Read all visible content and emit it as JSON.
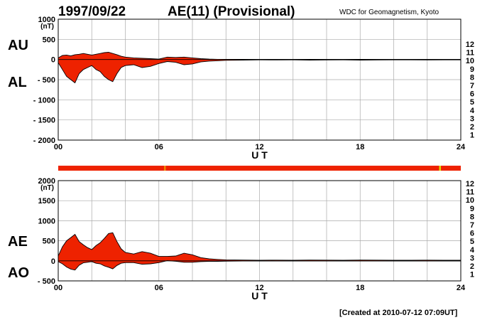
{
  "header": {
    "date": "1997/09/22",
    "title": "AE(11) (Provisional)",
    "source": "WDC for Geomagnetism, Kyoto"
  },
  "footer": {
    "created": "[Created at 2010-07-12 07:09UT]"
  },
  "stations": {
    "labels": [
      "12",
      "11",
      "10",
      "9",
      "8",
      "7",
      "6",
      "5",
      "4",
      "3",
      "2",
      "1"
    ],
    "colors": [
      "#e0207a",
      "#d40000",
      "#f0a000",
      "#e8e000",
      "#90e000",
      "#20c0c0",
      "#0070f0",
      "#2020c0",
      "#c000c0",
      "#000000",
      "#606060",
      "#b0b0b0"
    ]
  },
  "coverage_bar": {
    "color": "#ee2200",
    "markers": [
      {
        "hour": 6.35,
        "color": "#ee8800"
      },
      {
        "hour": 22.75,
        "color": "#dddd00"
      }
    ]
  },
  "chart_data": [
    {
      "type": "area",
      "name": "upper-panel",
      "left_labels": [
        "AU",
        "AL"
      ],
      "unit_label": "(nT)",
      "xlabel": "U T",
      "xlim": [
        0,
        24
      ],
      "xticks": [
        "00",
        "06",
        "12",
        "18",
        "24"
      ],
      "ylim": [
        -2000,
        1000
      ],
      "yticks": [
        1000,
        500,
        0,
        -500,
        -1000,
        -1500,
        -2000
      ],
      "ytick_labels": [
        "1000",
        "500",
        "0",
        "- 500",
        "- 1000",
        "- 1500",
        "- 2000"
      ],
      "grid": true,
      "fill_color": "#ee2200",
      "x": [
        0,
        0.25,
        0.5,
        0.75,
        1,
        1.25,
        1.5,
        1.75,
        2,
        2.25,
        2.5,
        2.75,
        3,
        3.25,
        3.5,
        3.75,
        4,
        4.5,
        5,
        5.5,
        6,
        6.5,
        7,
        7.5,
        8,
        8.5,
        9,
        9.5,
        10,
        11,
        12,
        13,
        14,
        15,
        16,
        17,
        18,
        19,
        20,
        21,
        22,
        23,
        24
      ],
      "series": [
        {
          "name": "AU",
          "values": [
            40,
            100,
            110,
            90,
            120,
            130,
            150,
            130,
            110,
            130,
            150,
            170,
            180,
            150,
            120,
            80,
            60,
            40,
            30,
            20,
            10,
            60,
            50,
            60,
            40,
            20,
            10,
            5,
            5,
            5,
            5,
            5,
            5,
            5,
            5,
            5,
            5,
            5,
            5,
            5,
            5,
            5,
            5
          ]
        },
        {
          "name": "AL",
          "values": [
            -80,
            -250,
            -420,
            -500,
            -580,
            -350,
            -250,
            -200,
            -150,
            -250,
            -300,
            -420,
            -500,
            -550,
            -350,
            -200,
            -150,
            -130,
            -200,
            -170,
            -100,
            -50,
            -70,
            -130,
            -110,
            -60,
            -40,
            -30,
            -20,
            -15,
            -10,
            -12,
            -10,
            -15,
            -12,
            -10,
            -15,
            -12,
            -10,
            -10,
            -12,
            -10,
            -10
          ]
        }
      ]
    },
    {
      "type": "area",
      "name": "lower-panel",
      "left_labels": [
        "AE",
        "AO"
      ],
      "unit_label": "(nT)",
      "xlabel": "U T",
      "xlim": [
        0,
        24
      ],
      "xticks": [
        "00",
        "06",
        "12",
        "18",
        "24"
      ],
      "ylim": [
        -500,
        2000
      ],
      "yticks": [
        2000,
        1500,
        1000,
        500,
        0,
        -500
      ],
      "ytick_labels": [
        "2000",
        "1500",
        "1000",
        "500",
        "0",
        "- 500"
      ],
      "grid": true,
      "fill_color": "#ee2200",
      "x": [
        0,
        0.25,
        0.5,
        0.75,
        1,
        1.25,
        1.5,
        1.75,
        2,
        2.25,
        2.5,
        2.75,
        3,
        3.25,
        3.5,
        3.75,
        4,
        4.5,
        5,
        5.5,
        6,
        6.5,
        7,
        7.5,
        8,
        8.5,
        9,
        9.5,
        10,
        11,
        12,
        13,
        14,
        15,
        16,
        17,
        18,
        19,
        20,
        21,
        22,
        23,
        24
      ],
      "series": [
        {
          "name": "AE",
          "values": [
            120,
            350,
            500,
            580,
            660,
            480,
            400,
            330,
            280,
            380,
            450,
            560,
            680,
            700,
            480,
            300,
            210,
            170,
            230,
            190,
            110,
            110,
            120,
            190,
            150,
            80,
            50,
            35,
            25,
            20,
            15,
            17,
            15,
            20,
            17,
            15,
            20,
            17,
            15,
            15,
            17,
            15,
            15
          ]
        },
        {
          "name": "AO",
          "values": [
            -20,
            -75,
            -155,
            -205,
            -230,
            -110,
            -50,
            -35,
            -20,
            -60,
            -75,
            -125,
            -160,
            -200,
            -115,
            -60,
            -45,
            -45,
            -85,
            -75,
            -45,
            5,
            -10,
            -35,
            -35,
            -20,
            -15,
            -12,
            -8,
            -5,
            -3,
            -4,
            -3,
            -5,
            -4,
            -3,
            -5,
            -4,
            -3,
            -3,
            -4,
            -3,
            -3
          ]
        }
      ]
    }
  ]
}
